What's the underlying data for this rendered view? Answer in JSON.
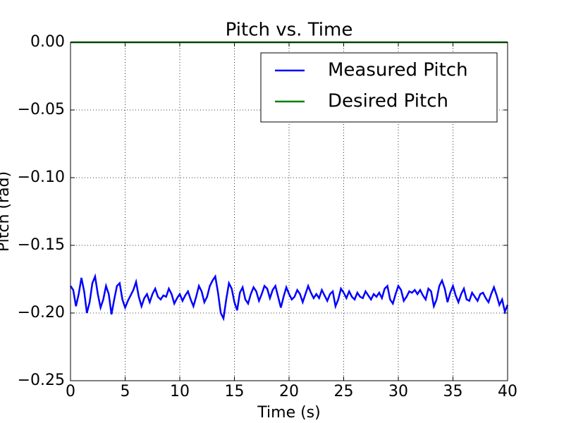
{
  "chart_data": {
    "type": "line",
    "title": "Pitch vs. Time",
    "xlabel": "Time (s)",
    "ylabel": "Pitch (rad)",
    "xlim": [
      0,
      40
    ],
    "ylim": [
      -0.25,
      0
    ],
    "xticks": [
      0,
      5,
      10,
      15,
      20,
      25,
      30,
      35,
      40
    ],
    "yticks": [
      {
        "value": -0.25,
        "label": "−0.25"
      },
      {
        "value": -0.2,
        "label": "−0.20"
      },
      {
        "value": -0.15,
        "label": "−0.15"
      },
      {
        "value": -0.1,
        "label": "−0.10"
      },
      {
        "value": -0.05,
        "label": "−0.05"
      },
      {
        "value": 0,
        "label": "0.00"
      }
    ],
    "grid": true,
    "legend": "upper right",
    "series": [
      {
        "name": "Measured Pitch",
        "color": "#0000ff",
        "x": [
          0,
          0.25,
          0.5,
          0.75,
          1,
          1.25,
          1.5,
          1.75,
          2,
          2.25,
          2.5,
          2.75,
          3,
          3.25,
          3.5,
          3.75,
          4,
          4.25,
          4.5,
          4.75,
          5,
          5.25,
          5.5,
          5.75,
          6,
          6.25,
          6.5,
          6.75,
          7,
          7.25,
          7.5,
          7.75,
          8,
          8.25,
          8.5,
          8.75,
          9,
          9.25,
          9.5,
          9.75,
          10,
          10.25,
          10.5,
          10.75,
          11,
          11.25,
          11.5,
          11.75,
          12,
          12.25,
          12.5,
          12.75,
          13,
          13.25,
          13.5,
          13.75,
          14,
          14.25,
          14.5,
          14.75,
          15,
          15.25,
          15.5,
          15.75,
          16,
          16.25,
          16.5,
          16.75,
          17,
          17.25,
          17.5,
          17.75,
          18,
          18.25,
          18.5,
          18.75,
          19,
          19.25,
          19.5,
          19.75,
          20,
          20.25,
          20.5,
          20.75,
          21,
          21.25,
          21.5,
          21.75,
          22,
          22.25,
          22.5,
          22.75,
          23,
          23.25,
          23.5,
          23.75,
          24,
          24.25,
          24.5,
          24.75,
          25,
          25.25,
          25.5,
          25.75,
          26,
          26.25,
          26.5,
          26.75,
          27,
          27.25,
          27.5,
          27.75,
          28,
          28.25,
          28.5,
          28.75,
          29,
          29.25,
          29.5,
          29.75,
          30,
          30.25,
          30.5,
          30.75,
          31,
          31.25,
          31.5,
          31.75,
          32,
          32.25,
          32.5,
          32.75,
          33,
          33.25,
          33.5,
          33.75,
          34,
          34.25,
          34.5,
          34.75,
          35,
          35.25,
          35.5,
          35.75,
          36,
          36.25,
          36.5,
          36.75,
          37,
          37.25,
          37.5,
          37.75,
          38,
          38.25,
          38.5,
          38.75,
          39,
          39.25,
          39.5,
          39.75,
          40
        ],
        "values": [
          -0.18,
          -0.183,
          -0.195,
          -0.186,
          -0.174,
          -0.184,
          -0.2,
          -0.192,
          -0.178,
          -0.173,
          -0.186,
          -0.196,
          -0.19,
          -0.18,
          -0.186,
          -0.201,
          -0.19,
          -0.18,
          -0.178,
          -0.19,
          -0.196,
          -0.191,
          -0.187,
          -0.183,
          -0.177,
          -0.188,
          -0.195,
          -0.189,
          -0.186,
          -0.192,
          -0.186,
          -0.182,
          -0.188,
          -0.19,
          -0.187,
          -0.188,
          -0.182,
          -0.186,
          -0.193,
          -0.189,
          -0.186,
          -0.191,
          -0.187,
          -0.184,
          -0.19,
          -0.195,
          -0.188,
          -0.18,
          -0.184,
          -0.192,
          -0.188,
          -0.18,
          -0.176,
          -0.173,
          -0.185,
          -0.2,
          -0.204,
          -0.19,
          -0.178,
          -0.182,
          -0.192,
          -0.198,
          -0.185,
          -0.181,
          -0.19,
          -0.193,
          -0.186,
          -0.181,
          -0.184,
          -0.191,
          -0.186,
          -0.18,
          -0.182,
          -0.189,
          -0.183,
          -0.18,
          -0.188,
          -0.196,
          -0.188,
          -0.181,
          -0.186,
          -0.19,
          -0.188,
          -0.183,
          -0.186,
          -0.192,
          -0.186,
          -0.18,
          -0.185,
          -0.189,
          -0.186,
          -0.189,
          -0.183,
          -0.187,
          -0.191,
          -0.186,
          -0.184,
          -0.195,
          -0.19,
          -0.182,
          -0.185,
          -0.189,
          -0.184,
          -0.188,
          -0.19,
          -0.185,
          -0.188,
          -0.189,
          -0.184,
          -0.187,
          -0.19,
          -0.186,
          -0.188,
          -0.185,
          -0.189,
          -0.182,
          -0.18,
          -0.19,
          -0.193,
          -0.186,
          -0.18,
          -0.183,
          -0.191,
          -0.188,
          -0.184,
          -0.185,
          -0.183,
          -0.186,
          -0.183,
          -0.187,
          -0.19,
          -0.182,
          -0.184,
          -0.195,
          -0.19,
          -0.18,
          -0.176,
          -0.182,
          -0.192,
          -0.185,
          -0.18,
          -0.187,
          -0.192,
          -0.186,
          -0.182,
          -0.19,
          -0.191,
          -0.185,
          -0.188,
          -0.191,
          -0.186,
          -0.185,
          -0.189,
          -0.192,
          -0.186,
          -0.181,
          -0.187,
          -0.194,
          -0.19,
          -0.199,
          -0.194
        ]
      },
      {
        "name": "Desired Pitch",
        "color": "#008000",
        "x": [
          0,
          40
        ],
        "values": [
          0,
          0
        ]
      }
    ]
  }
}
